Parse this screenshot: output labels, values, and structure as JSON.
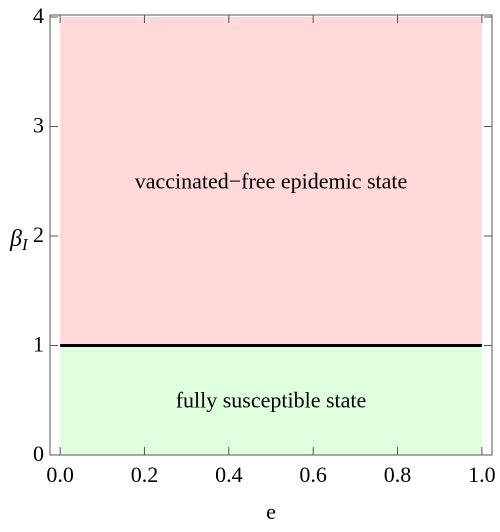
{
  "chart_data": {
    "type": "region",
    "xlabel": "e",
    "ylabel": "β",
    "ylabel_subscript": "I",
    "xlim": [
      -0.024,
      1.024
    ],
    "ylim": [
      0,
      4
    ],
    "xticks": [
      {
        "value": 0,
        "label": "0.0"
      },
      0.2,
      0.4,
      0.6,
      0.8,
      {
        "value": 1,
        "label": "1.0"
      }
    ],
    "yticks": [
      0,
      1,
      2,
      3,
      4
    ],
    "region_x": [
      0,
      1
    ],
    "regions": [
      {
        "name": "fully susceptible state",
        "color": "#e0ffdf",
        "y": [
          0,
          1
        ]
      },
      {
        "name": "vaccinated−free epidemic state",
        "color": "#ffd9d9",
        "y": [
          1,
          4
        ]
      }
    ],
    "boundary": {
      "y": 1,
      "color": "#000000"
    }
  }
}
